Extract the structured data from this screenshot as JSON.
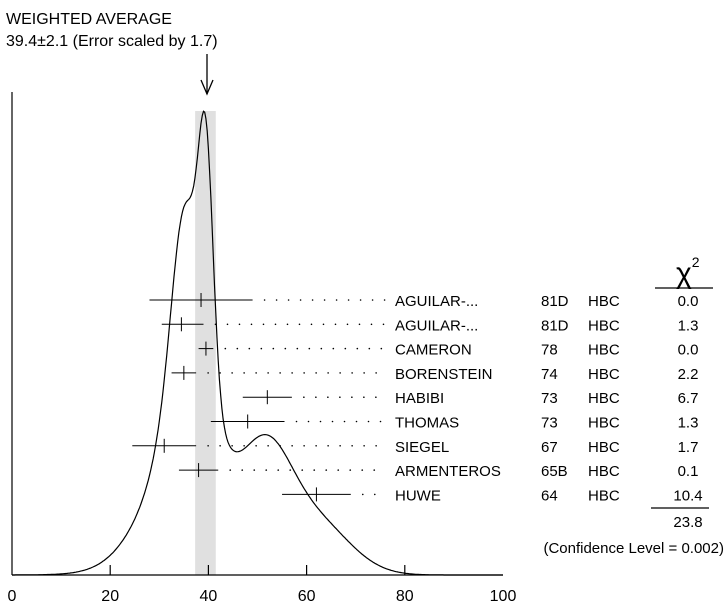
{
  "header": {
    "title": "WEIGHTED AVERAGE",
    "subtitle": "39.4±2.1 (Error scaled by 1.7)"
  },
  "chi2_header": "χ",
  "chi2_power": "2",
  "chi2_total": "23.8",
  "confidence": "(Confidence Level = 0.002)",
  "colors": {
    "band": "#e0e0e0",
    "ink": "#000000"
  },
  "chart_data": {
    "type": "ideogram",
    "title": "WEIGHTED AVERAGE",
    "mean": 39.4,
    "error": 2.1,
    "error_scale": 1.7,
    "xlim": [
      0,
      100
    ],
    "x_ticks": [
      0,
      20,
      40,
      60,
      80,
      100
    ],
    "measurements": [
      {
        "name": "AGUILAR-...",
        "year": "81D",
        "tech": "HBC",
        "value": 38.5,
        "err_low": 10.5,
        "err_high": 10.5,
        "chi2": "0.0"
      },
      {
        "name": "AGUILAR-...",
        "year": "81D",
        "tech": "HBC",
        "value": 34.5,
        "err_low": 4.0,
        "err_high": 4.5,
        "chi2": "1.3"
      },
      {
        "name": "CAMERON",
        "year": "78",
        "tech": "HBC",
        "value": 39.5,
        "err_low": 1.5,
        "err_high": 1.5,
        "chi2": "0.0"
      },
      {
        "name": "BORENSTEIN",
        "year": "74",
        "tech": "HBC",
        "value": 35.0,
        "err_low": 2.5,
        "err_high": 2.5,
        "chi2": "2.2"
      },
      {
        "name": "HABIBI",
        "year": "73",
        "tech": "HBC",
        "value": 52.0,
        "err_low": 5.0,
        "err_high": 5.0,
        "chi2": "6.7"
      },
      {
        "name": "THOMAS",
        "year": "73",
        "tech": "HBC",
        "value": 48.0,
        "err_low": 7.5,
        "err_high": 7.5,
        "chi2": "1.3"
      },
      {
        "name": "SIEGEL",
        "year": "67",
        "tech": "HBC",
        "value": 31.0,
        "err_low": 6.5,
        "err_high": 6.5,
        "chi2": "1.7"
      },
      {
        "name": "ARMENTEROS",
        "year": "65B",
        "tech": "HBC",
        "value": 38.0,
        "err_low": 4.0,
        "err_high": 4.0,
        "chi2": "0.1"
      },
      {
        "name": "HUWE",
        "year": "64",
        "tech": "HBC",
        "value": 62.0,
        "err_low": 7.0,
        "err_high": 7.0,
        "chi2": "10.4"
      }
    ]
  }
}
